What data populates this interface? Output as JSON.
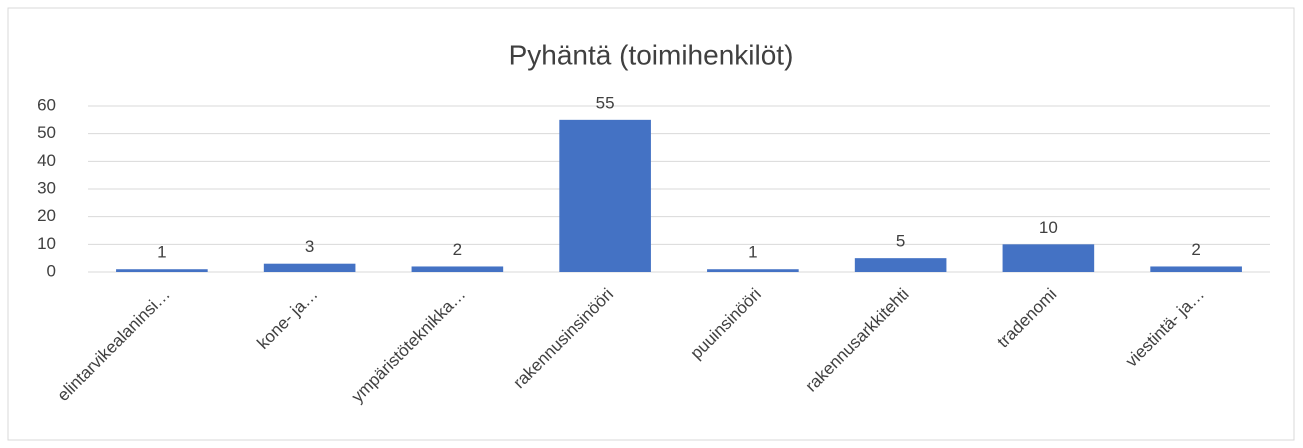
{
  "chart_data": {
    "type": "bar",
    "title": "Pyhäntä (toimihenkilöt)",
    "categories": [
      "elintarvikealaninsi…",
      "kone- ja…",
      "ympäristöteknikka…",
      "rakennusinsinööri",
      "puuinsinööri",
      "rakennusarkkitehti",
      "tradenomi",
      "viestintä- ja…"
    ],
    "values": [
      1,
      3,
      2,
      55,
      1,
      5,
      10,
      2
    ],
    "color": "#4472c4",
    "ylim": [
      0,
      60
    ],
    "yticks": [
      0,
      10,
      20,
      30,
      40,
      50,
      60
    ],
    "grid": true
  }
}
